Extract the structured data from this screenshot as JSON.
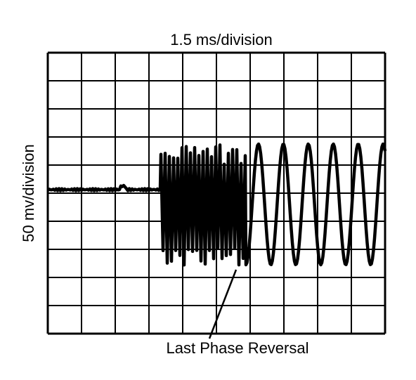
{
  "header": {
    "title": "1.5 ms/division"
  },
  "axis": {
    "y_label": "50 mv/division"
  },
  "annotation": {
    "label": "Last Phase Reversal"
  }
}
